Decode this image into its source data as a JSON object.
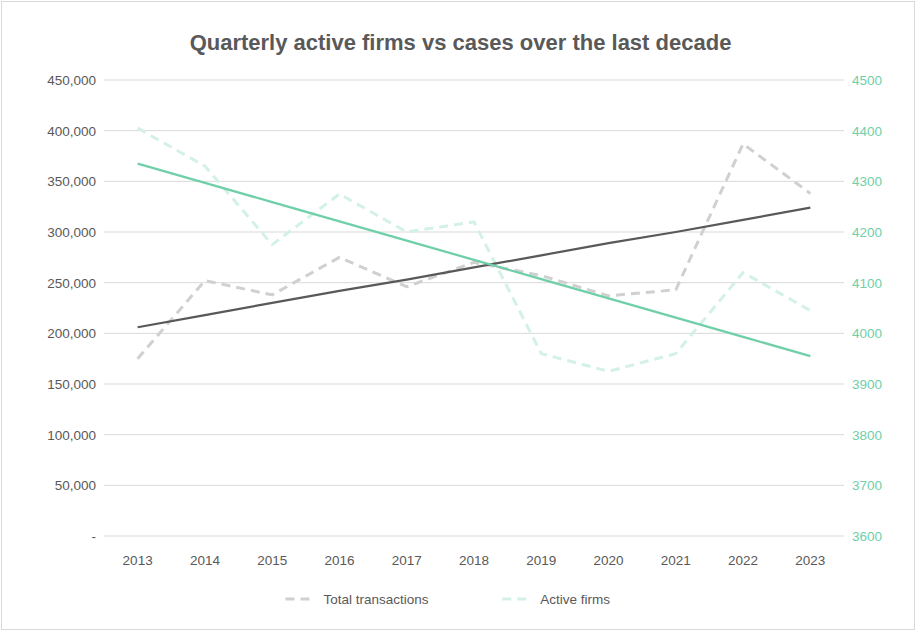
{
  "chart_data": {
    "type": "line",
    "title": "Quarterly active firms vs cases over the last decade",
    "categories": [
      "2013",
      "2014",
      "2015",
      "2016",
      "2017",
      "2018",
      "2019",
      "2020",
      "2021",
      "2022",
      "2023"
    ],
    "series": [
      {
        "name": "Total transactions",
        "color": "#d0d0d0",
        "line_style": "dashed",
        "values": [
          175000,
          252000,
          238000,
          275000,
          246000,
          270000,
          257000,
          237000,
          243000,
          387000,
          338000
        ]
      },
      {
        "name": "Active firms",
        "color": "#d3f1e5",
        "line_style": "dashed",
        "axis": "y2",
        "values": [
          4405,
          4330,
          4175,
          4275,
          4200,
          4220,
          3960,
          3925,
          3960,
          4120,
          4045
        ]
      },
      {
        "color": "#595959",
        "line_style": "solid",
        "values": [
          206000,
          218000,
          230000,
          242000,
          253000,
          265000,
          277000,
          289000,
          300000,
          312000,
          324000
        ]
      },
      {
        "color": "#6fcfa8",
        "line_style": "solid",
        "axis": "y2",
        "values": [
          4335,
          4297,
          4259,
          4221,
          4183,
          4145,
          4107,
          4069,
          4031,
          3993,
          3955
        ]
      }
    ],
    "ylim": [
      0,
      450000
    ],
    "yticks": [
      {
        "value": 0,
        "label": "-"
      },
      {
        "value": 50000,
        "label": "50,000"
      },
      {
        "value": 100000,
        "label": "100,000"
      },
      {
        "value": 150000,
        "label": "150,000"
      },
      {
        "value": 200000,
        "label": "200,000"
      },
      {
        "value": 250000,
        "label": "250,000"
      },
      {
        "value": 300000,
        "label": "300,000"
      },
      {
        "value": 350000,
        "label": "350,000"
      },
      {
        "value": 400000,
        "label": "400,000"
      },
      {
        "value": 450000,
        "label": "450,000"
      }
    ],
    "y2lim": [
      3600,
      4500
    ],
    "y2ticks": [
      3600,
      3700,
      3800,
      3900,
      4000,
      4100,
      4200,
      4300,
      4400,
      4500
    ],
    "grid": true,
    "legend": "bottom"
  }
}
